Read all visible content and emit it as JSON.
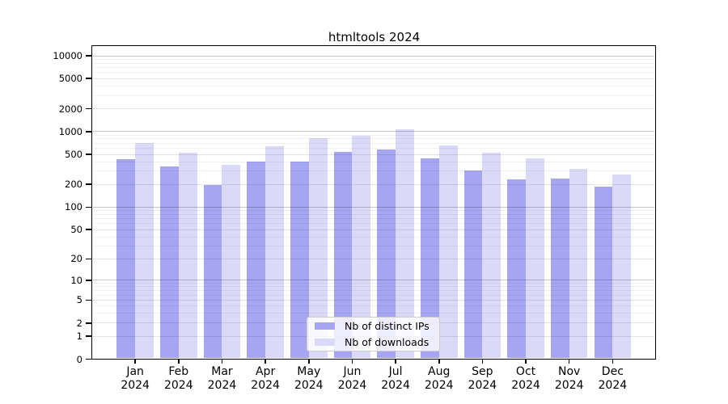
{
  "chart_data": {
    "type": "bar",
    "title": "htmltools 2024",
    "xlabel": "",
    "ylabel": "",
    "yscale": "log1p",
    "grid": "on",
    "legend_position": "lower center",
    "ylim": [
      0,
      13000
    ],
    "yticks": [
      0,
      1,
      2,
      5,
      10,
      20,
      50,
      100,
      200,
      500,
      1000,
      2000,
      5000,
      10000
    ],
    "categories": [
      "Jan 2024",
      "Feb 2024",
      "Mar 2024",
      "Apr 2024",
      "May 2024",
      "Jun 2024",
      "Jul 2024",
      "Aug 2024",
      "Sep 2024",
      "Oct 2024",
      "Nov 2024",
      "Dec 2024"
    ],
    "series": [
      {
        "name": "Nb of distinct IPs",
        "color": "#a5a5f1",
        "values": [
          430,
          345,
          197,
          403,
          405,
          540,
          585,
          440,
          310,
          232,
          238,
          186
        ]
      },
      {
        "name": "Nb of downloads",
        "color": "#dadaf8",
        "values": [
          705,
          520,
          365,
          645,
          820,
          890,
          1080,
          650,
          520,
          445,
          322,
          268
        ]
      }
    ]
  }
}
